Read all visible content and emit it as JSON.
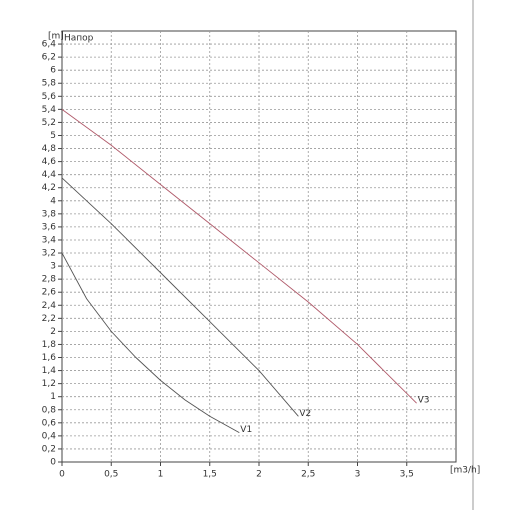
{
  "chart_data": {
    "type": "line",
    "y_label": "[m]",
    "x_label": "[m3/h]",
    "annotation": "Напор",
    "series": [
      {
        "name": "V1",
        "color": "#555555",
        "x": [
          0,
          0.25,
          0.5,
          0.75,
          1,
          1.25,
          1.5,
          1.8
        ],
        "values": [
          3.2,
          2.5,
          2.0,
          1.6,
          1.25,
          0.95,
          0.7,
          0.45
        ]
      },
      {
        "name": "V2",
        "color": "#555555",
        "x": [
          0,
          0.5,
          1,
          1.5,
          2,
          2.4
        ],
        "values": [
          4.35,
          3.65,
          2.9,
          2.15,
          1.4,
          0.7
        ]
      },
      {
        "name": "V3",
        "color": "#b05a6a",
        "x": [
          0,
          0.5,
          1,
          1.5,
          2,
          2.5,
          3,
          3.6
        ],
        "values": [
          5.4,
          4.85,
          4.25,
          3.65,
          3.05,
          2.45,
          1.8,
          0.9
        ]
      }
    ],
    "xlim": [
      0,
      4
    ],
    "ylim": [
      0,
      6.6
    ],
    "xticks": [
      0,
      {
        "value": 0.5,
        "label": "0,5"
      },
      1,
      {
        "value": 1.5,
        "label": "1,5"
      },
      2,
      {
        "value": 2.5,
        "label": "2,5"
      },
      3,
      {
        "value": 3.5,
        "label": "3,5"
      }
    ],
    "yticks": [
      0,
      {
        "value": 0.2,
        "label": "0,2"
      },
      {
        "value": 0.4,
        "label": "0,4"
      },
      {
        "value": 0.6,
        "label": "0,6"
      },
      {
        "value": 0.8,
        "label": "0,8"
      },
      1,
      {
        "value": 1.2,
        "label": "1,2"
      },
      {
        "value": 1.4,
        "label": "1,4"
      },
      {
        "value": 1.6,
        "label": "1,6"
      },
      {
        "value": 1.8,
        "label": "1,8"
      },
      2,
      {
        "value": 2.2,
        "label": "2,2"
      },
      {
        "value": 2.4,
        "label": "2,4"
      },
      {
        "value": 2.6,
        "label": "2,6"
      },
      {
        "value": 2.8,
        "label": "2,8"
      },
      3,
      {
        "value": 3.2,
        "label": "3,2"
      },
      {
        "value": 3.4,
        "label": "3,4"
      },
      {
        "value": 3.6,
        "label": "3,6"
      },
      {
        "value": 3.8,
        "label": "3,8"
      },
      4,
      {
        "value": 4.2,
        "label": "4,2"
      },
      {
        "value": 4.4,
        "label": "4,4"
      },
      {
        "value": 4.6,
        "label": "4,6"
      },
      {
        "value": 4.8,
        "label": "4,8"
      },
      5,
      {
        "value": 5.2,
        "label": "5,2"
      },
      {
        "value": 5.4,
        "label": "5,4"
      },
      {
        "value": 5.6,
        "label": "5,6"
      },
      {
        "value": 5.8,
        "label": "5,8"
      },
      6,
      {
        "value": 6.2,
        "label": "6,2"
      },
      {
        "value": 6.4,
        "label": "6,4"
      }
    ],
    "grid": true
  }
}
